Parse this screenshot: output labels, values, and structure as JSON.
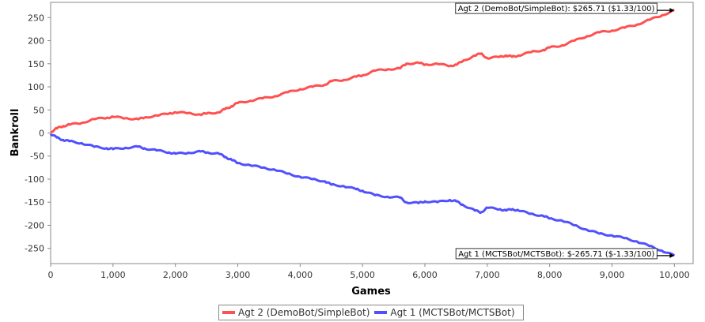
{
  "chart_data": {
    "type": "line",
    "title": "",
    "xlabel": "Games",
    "ylabel": "Bankroll",
    "xlim": [
      0,
      10300
    ],
    "ylim": [
      -283,
      283
    ],
    "x_ticks": [
      0,
      1000,
      2000,
      3000,
      4000,
      5000,
      6000,
      7000,
      8000,
      9000,
      10000
    ],
    "x_tick_labels": [
      "0",
      "1,000",
      "2,000",
      "3,000",
      "4,000",
      "5,000",
      "6,000",
      "7,000",
      "8,000",
      "9,000",
      "10,000"
    ],
    "y_ticks": [
      -250,
      -200,
      -150,
      -100,
      -50,
      0,
      50,
      100,
      150,
      200,
      250
    ],
    "y_tick_labels": [
      "-250",
      "-200",
      "-150",
      "-100",
      "-50",
      "0",
      "50",
      "100",
      "150",
      "200",
      "250"
    ],
    "grid": false,
    "legend_position": "bottom",
    "series": [
      {
        "name": "Agt 2 (DemoBot/SimpleBot)",
        "color": "#ff5050",
        "x": [
          0,
          100,
          200,
          300,
          500,
          700,
          900,
          1000,
          1200,
          1400,
          1500,
          1700,
          1900,
          2000,
          2200,
          2400,
          2500,
          2700,
          2800,
          2900,
          3000,
          3200,
          3400,
          3600,
          3800,
          4000,
          4200,
          4400,
          4500,
          4700,
          4900,
          5000,
          5200,
          5400,
          5600,
          5700,
          5900,
          6000,
          6200,
          6400,
          6500,
          6600,
          6800,
          6900,
          7000,
          7200,
          7300,
          7400,
          7500,
          7700,
          7900,
          8000,
          8200,
          8400,
          8600,
          8800,
          9000,
          9200,
          9400,
          9600,
          9800,
          10000
        ],
        "y": [
          2,
          10,
          15,
          18,
          22,
          30,
          33,
          35,
          32,
          30,
          33,
          38,
          42,
          45,
          43,
          40,
          42,
          45,
          52,
          58,
          65,
          70,
          75,
          80,
          88,
          95,
          100,
          105,
          112,
          115,
          122,
          125,
          135,
          138,
          140,
          150,
          152,
          148,
          150,
          145,
          148,
          155,
          168,
          172,
          162,
          165,
          168,
          165,
          168,
          175,
          180,
          185,
          190,
          200,
          210,
          218,
          222,
          228,
          235,
          245,
          255,
          265.71
        ]
      },
      {
        "name": "Agt 1 (MCTSBot/MCTSBot)",
        "color": "#5050ff",
        "x": [
          0,
          100,
          200,
          300,
          500,
          700,
          900,
          1000,
          1200,
          1400,
          1500,
          1700,
          1900,
          2000,
          2200,
          2400,
          2500,
          2700,
          2800,
          2900,
          3000,
          3200,
          3400,
          3600,
          3800,
          4000,
          4200,
          4400,
          4500,
          4700,
          4900,
          5000,
          5200,
          5400,
          5600,
          5700,
          5900,
          6000,
          6200,
          6400,
          6500,
          6600,
          6800,
          6900,
          7000,
          7200,
          7300,
          7400,
          7500,
          7700,
          7900,
          8000,
          8200,
          8400,
          8600,
          8800,
          9000,
          9200,
          9400,
          9600,
          9800,
          10000
        ],
        "y": [
          -2,
          -10,
          -15,
          -18,
          -22,
          -30,
          -33,
          -35,
          -32,
          -30,
          -33,
          -38,
          -42,
          -45,
          -43,
          -40,
          -42,
          -45,
          -52,
          -58,
          -65,
          -70,
          -75,
          -80,
          -88,
          -95,
          -100,
          -105,
          -112,
          -115,
          -122,
          -125,
          -135,
          -138,
          -140,
          -150,
          -152,
          -148,
          -150,
          -145,
          -148,
          -155,
          -168,
          -172,
          -162,
          -165,
          -168,
          -165,
          -168,
          -175,
          -180,
          -185,
          -190,
          -200,
          -210,
          -218,
          -222,
          -228,
          -235,
          -245,
          -255,
          -265.71
        ]
      }
    ],
    "annotations": [
      {
        "text": "Agt 2 (DemoBot/SimpleBot): $265.71 ($1.33/100)",
        "x": 10000,
        "y": 265.71
      },
      {
        "text": "Agt 1 (MCTSBot/MCTSBot): $-265.71 ($-1.33/100)",
        "x": 10000,
        "y": -265.71
      }
    ]
  }
}
